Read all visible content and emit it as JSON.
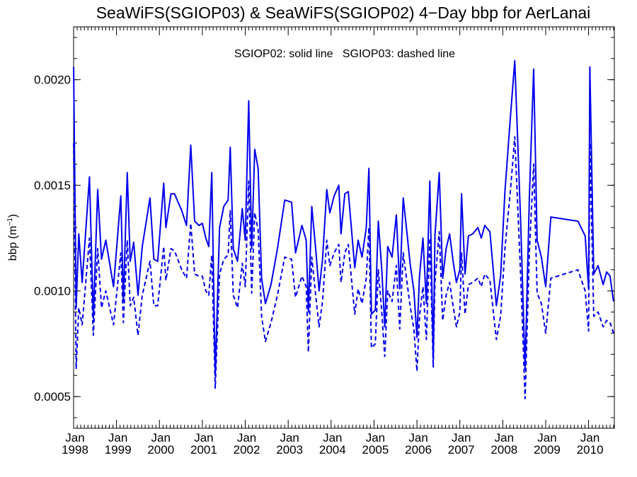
{
  "chart_data": {
    "type": "line",
    "title": "SeaWiFS(SGIOP03) & SeaWiFS(SGIOP02) 4−Day bbp for AerLanai",
    "annotation": "SGIOP02: solid line   SGIOP03: dashed line",
    "ylabel": "bbp (m",
    "ylabel_sup": "−1",
    "ylabel_close": ")",
    "ylim": [
      0.00035,
      0.00225
    ],
    "xlim": [
      1998.0,
      2010.6
    ],
    "yticks": [
      {
        "value": 0.0005,
        "label": "0.0005"
      },
      {
        "value": 0.001,
        "label": "0.0010"
      },
      {
        "value": 0.0015,
        "label": "0.0015"
      },
      {
        "value": 0.002,
        "label": "0.0020"
      }
    ],
    "xticks": [
      {
        "value": 1998,
        "month": "Jan",
        "year": "1998"
      },
      {
        "value": 1999,
        "month": "Jan",
        "year": "1999"
      },
      {
        "value": 2000,
        "month": "Jan",
        "year": "2000"
      },
      {
        "value": 2001,
        "month": "Jan",
        "year": "2001"
      },
      {
        "value": 2002,
        "month": "Jan",
        "year": "2002"
      },
      {
        "value": 2003,
        "month": "Jan",
        "year": "2003"
      },
      {
        "value": 2004,
        "month": "Jan",
        "year": "2004"
      },
      {
        "value": 2005,
        "month": "Jan",
        "year": "2005"
      },
      {
        "value": 2006,
        "month": "Jan",
        "year": "2006"
      },
      {
        "value": 2007,
        "month": "Jan",
        "year": "2007"
      },
      {
        "value": 2008,
        "month": "Jan",
        "year": "2008"
      },
      {
        "value": 2009,
        "month": "Jan",
        "year": "2009"
      },
      {
        "value": 2010,
        "month": "Jan",
        "year": "2010"
      }
    ],
    "line_color": "#0000ee",
    "series": [
      {
        "name": "SGIOP02",
        "style": "solid",
        "points": [
          [
            1998.0,
            0.00206
          ],
          [
            1998.06,
            0.00092
          ],
          [
            1998.12,
            0.00127
          ],
          [
            1998.2,
            0.00104
          ],
          [
            1998.37,
            0.00154
          ],
          [
            1998.46,
            0.00087
          ],
          [
            1998.56,
            0.00148
          ],
          [
            1998.65,
            0.00115
          ],
          [
            1998.75,
            0.00124
          ],
          [
            1998.93,
            0.00102
          ],
          [
            1999.1,
            0.00145
          ],
          [
            1999.16,
            0.00095
          ],
          [
            1999.25,
            0.00156
          ],
          [
            1999.32,
            0.00114
          ],
          [
            1999.4,
            0.00123
          ],
          [
            1999.5,
            0.00098
          ],
          [
            1999.6,
            0.00121
          ],
          [
            1999.78,
            0.00144
          ],
          [
            1999.87,
            0.00115
          ],
          [
            1999.96,
            0.00114
          ],
          [
            2000.1,
            0.00151
          ],
          [
            2000.15,
            0.0013
          ],
          [
            2000.27,
            0.00146
          ],
          [
            2000.35,
            0.00146
          ],
          [
            2000.52,
            0.00138
          ],
          [
            2000.63,
            0.00131
          ],
          [
            2000.73,
            0.00169
          ],
          [
            2000.82,
            0.00133
          ],
          [
            2000.92,
            0.00131
          ],
          [
            2001.0,
            0.00132
          ],
          [
            2001.08,
            0.00125
          ],
          [
            2001.15,
            0.00121
          ],
          [
            2001.22,
            0.00156
          ],
          [
            2001.3,
            0.0006
          ],
          [
            2001.4,
            0.0013
          ],
          [
            2001.5,
            0.0014
          ],
          [
            2001.6,
            0.00143
          ],
          [
            2001.65,
            0.00168
          ],
          [
            2001.72,
            0.0012
          ],
          [
            2001.82,
            0.00114
          ],
          [
            2001.93,
            0.00139
          ],
          [
            2002.0,
            0.00124
          ],
          [
            2002.08,
            0.0019
          ],
          [
            2002.15,
            0.0012
          ],
          [
            2002.22,
            0.00167
          ],
          [
            2002.3,
            0.00158
          ],
          [
            2002.38,
            0.00106
          ],
          [
            2002.47,
            0.00094
          ],
          [
            2002.6,
            0.00103
          ],
          [
            2002.75,
            0.0012
          ],
          [
            2002.92,
            0.00143
          ],
          [
            2003.08,
            0.00142
          ],
          [
            2003.17,
            0.00118
          ],
          [
            2003.32,
            0.00131
          ],
          [
            2003.42,
            0.00124
          ],
          [
            2003.47,
            0.0009
          ],
          [
            2003.55,
            0.0014
          ],
          [
            2003.64,
            0.0012
          ],
          [
            2003.72,
            0.001
          ],
          [
            2003.8,
            0.00115
          ],
          [
            2003.9,
            0.00148
          ],
          [
            2003.97,
            0.00137
          ],
          [
            2004.07,
            0.00145
          ],
          [
            2004.18,
            0.0015
          ],
          [
            2004.23,
            0.00127
          ],
          [
            2004.32,
            0.00146
          ],
          [
            2004.4,
            0.00147
          ],
          [
            2004.55,
            0.00111
          ],
          [
            2004.63,
            0.00124
          ],
          [
            2004.72,
            0.00116
          ],
          [
            2004.82,
            0.0013
          ],
          [
            2004.88,
            0.00158
          ],
          [
            2004.94,
            0.00089
          ],
          [
            2005.03,
            0.00091
          ],
          [
            2005.1,
            0.00133
          ],
          [
            2005.18,
            0.0011
          ],
          [
            2005.25,
            0.00083
          ],
          [
            2005.32,
            0.00121
          ],
          [
            2005.42,
            0.00116
          ],
          [
            2005.52,
            0.00136
          ],
          [
            2005.6,
            0.00101
          ],
          [
            2005.68,
            0.00144
          ],
          [
            2005.75,
            0.00131
          ],
          [
            2005.84,
            0.00113
          ],
          [
            2005.93,
            0.001
          ],
          [
            2006.0,
            0.00078
          ],
          [
            2006.06,
            0.00107
          ],
          [
            2006.14,
            0.00125
          ],
          [
            2006.22,
            0.00094
          ],
          [
            2006.3,
            0.00152
          ],
          [
            2006.38,
            0.00068
          ],
          [
            2006.42,
            0.00126
          ],
          [
            2006.52,
            0.00156
          ],
          [
            2006.6,
            0.00106
          ],
          [
            2006.68,
            0.0012
          ],
          [
            2006.76,
            0.00127
          ],
          [
            2006.85,
            0.00113
          ],
          [
            2006.92,
            0.00104
          ],
          [
            2007.0,
            0.0011
          ],
          [
            2007.04,
            0.00146
          ],
          [
            2007.12,
            0.00108
          ],
          [
            2007.2,
            0.00126
          ],
          [
            2007.3,
            0.00127
          ],
          [
            2007.42,
            0.0013
          ],
          [
            2007.5,
            0.00125
          ],
          [
            2007.58,
            0.00131
          ],
          [
            2007.7,
            0.00128
          ],
          [
            2007.85,
            0.00093
          ],
          [
            2007.95,
            0.00107
          ],
          [
            2008.05,
            0.00147
          ],
          [
            2008.18,
            0.00183
          ],
          [
            2008.28,
            0.00209
          ],
          [
            2008.42,
            0.00131
          ],
          [
            2008.52,
            0.00063
          ],
          [
            2008.62,
            0.00144
          ],
          [
            2008.72,
            0.00205
          ],
          [
            2008.8,
            0.00124
          ],
          [
            2008.9,
            0.00116
          ],
          [
            2009.0,
            0.00102
          ],
          [
            2009.12,
            0.00135
          ],
          [
            2009.75,
            0.00133
          ],
          [
            2009.92,
            0.00126
          ],
          [
            2010.0,
            0.00101
          ],
          [
            2010.03,
            0.00206
          ],
          [
            2010.12,
            0.00108
          ],
          [
            2010.22,
            0.00112
          ],
          [
            2010.34,
            0.00103
          ],
          [
            2010.42,
            0.00109
          ],
          [
            2010.5,
            0.00107
          ],
          [
            2010.58,
            0.00095
          ]
        ]
      },
      {
        "name": "SGIOP03",
        "style": "dashed",
        "points": [
          [
            1998.0,
            0.0017
          ],
          [
            1998.06,
            0.00063
          ],
          [
            1998.12,
            0.00092
          ],
          [
            1998.2,
            0.00084
          ],
          [
            1998.37,
            0.00125
          ],
          [
            1998.46,
            0.00079
          ],
          [
            1998.56,
            0.0012
          ],
          [
            1998.65,
            0.00092
          ],
          [
            1998.75,
            0.001
          ],
          [
            1998.93,
            0.00084
          ],
          [
            1999.1,
            0.00118
          ],
          [
            1999.16,
            0.00085
          ],
          [
            1999.25,
            0.00124
          ],
          [
            1999.32,
            0.00093
          ],
          [
            1999.4,
            0.00097
          ],
          [
            1999.5,
            0.00079
          ],
          [
            1999.6,
            0.00098
          ],
          [
            1999.78,
            0.00114
          ],
          [
            1999.87,
            0.00093
          ],
          [
            1999.96,
            0.00093
          ],
          [
            2000.1,
            0.00121
          ],
          [
            2000.15,
            0.00105
          ],
          [
            2000.27,
            0.0012
          ],
          [
            2000.35,
            0.00119
          ],
          [
            2000.52,
            0.0011
          ],
          [
            2000.63,
            0.00106
          ],
          [
            2000.73,
            0.00132
          ],
          [
            2000.82,
            0.00108
          ],
          [
            2000.92,
            0.00107
          ],
          [
            2001.0,
            0.00107
          ],
          [
            2001.08,
            0.001
          ],
          [
            2001.15,
            0.00098
          ],
          [
            2001.22,
            0.00117
          ],
          [
            2001.3,
            0.00054
          ],
          [
            2001.4,
            0.00108
          ],
          [
            2001.5,
            0.00115
          ],
          [
            2001.6,
            0.00117
          ],
          [
            2001.65,
            0.00138
          ],
          [
            2001.72,
            0.00098
          ],
          [
            2001.82,
            0.00092
          ],
          [
            2001.93,
            0.00113
          ],
          [
            2002.0,
            0.00102
          ],
          [
            2002.08,
            0.00152
          ],
          [
            2002.15,
            0.00099
          ],
          [
            2002.22,
            0.00137
          ],
          [
            2002.3,
            0.00129
          ],
          [
            2002.38,
            0.00088
          ],
          [
            2002.47,
            0.00076
          ],
          [
            2002.6,
            0.00085
          ],
          [
            2002.75,
            0.00098
          ],
          [
            2002.92,
            0.00116
          ],
          [
            2003.08,
            0.00115
          ],
          [
            2003.17,
            0.00097
          ],
          [
            2003.32,
            0.00107
          ],
          [
            2003.42,
            0.00102
          ],
          [
            2003.47,
            0.00071
          ],
          [
            2003.55,
            0.00116
          ],
          [
            2003.64,
            0.00098
          ],
          [
            2003.72,
            0.00083
          ],
          [
            2003.8,
            0.00095
          ],
          [
            2003.9,
            0.00124
          ],
          [
            2003.97,
            0.00112
          ],
          [
            2004.07,
            0.00118
          ],
          [
            2004.18,
            0.00122
          ],
          [
            2004.23,
            0.00104
          ],
          [
            2004.32,
            0.00118
          ],
          [
            2004.4,
            0.00122
          ],
          [
            2004.55,
            0.00089
          ],
          [
            2004.63,
            0.00101
          ],
          [
            2004.72,
            0.00094
          ],
          [
            2004.82,
            0.00106
          ],
          [
            2004.88,
            0.0013
          ],
          [
            2004.94,
            0.00073
          ],
          [
            2005.03,
            0.00075
          ],
          [
            2005.1,
            0.0011
          ],
          [
            2005.18,
            0.0009
          ],
          [
            2005.25,
            0.00069
          ],
          [
            2005.32,
            0.001
          ],
          [
            2005.42,
            0.00095
          ],
          [
            2005.52,
            0.00112
          ],
          [
            2005.6,
            0.00082
          ],
          [
            2005.68,
            0.00118
          ],
          [
            2005.75,
            0.00107
          ],
          [
            2005.84,
            0.00093
          ],
          [
            2005.93,
            0.00082
          ],
          [
            2006.0,
            0.00062
          ],
          [
            2006.06,
            0.00088
          ],
          [
            2006.14,
            0.00102
          ],
          [
            2006.22,
            0.00077
          ],
          [
            2006.3,
            0.00125
          ],
          [
            2006.38,
            0.00064
          ],
          [
            2006.42,
            0.00104
          ],
          [
            2006.52,
            0.00128
          ],
          [
            2006.6,
            0.00086
          ],
          [
            2006.68,
            0.00098
          ],
          [
            2006.76,
            0.00104
          ],
          [
            2006.85,
            0.00092
          ],
          [
            2006.92,
            0.00083
          ],
          [
            2007.0,
            0.0009
          ],
          [
            2007.04,
            0.00118
          ],
          [
            2007.12,
            0.00089
          ],
          [
            2007.2,
            0.00103
          ],
          [
            2007.3,
            0.00104
          ],
          [
            2007.42,
            0.00106
          ],
          [
            2007.5,
            0.00102
          ],
          [
            2007.58,
            0.00108
          ],
          [
            2007.7,
            0.00105
          ],
          [
            2007.85,
            0.00077
          ],
          [
            2007.95,
            0.00088
          ],
          [
            2008.05,
            0.0012
          ],
          [
            2008.18,
            0.00148
          ],
          [
            2008.28,
            0.00173
          ],
          [
            2008.42,
            0.00106
          ],
          [
            2008.52,
            0.00049
          ],
          [
            2008.62,
            0.00118
          ],
          [
            2008.72,
            0.0016
          ],
          [
            2008.8,
            0.00099
          ],
          [
            2008.9,
            0.00094
          ],
          [
            2009.0,
            0.0008
          ],
          [
            2009.12,
            0.00106
          ],
          [
            2009.75,
            0.0011
          ],
          [
            2009.92,
            0.001
          ],
          [
            2010.0,
            0.00081
          ],
          [
            2010.03,
            0.0017
          ],
          [
            2010.12,
            0.00088
          ],
          [
            2010.22,
            0.0009
          ],
          [
            2010.34,
            0.00083
          ],
          [
            2010.42,
            0.00086
          ],
          [
            2010.5,
            0.00085
          ],
          [
            2010.58,
            0.0008
          ]
        ]
      }
    ]
  }
}
